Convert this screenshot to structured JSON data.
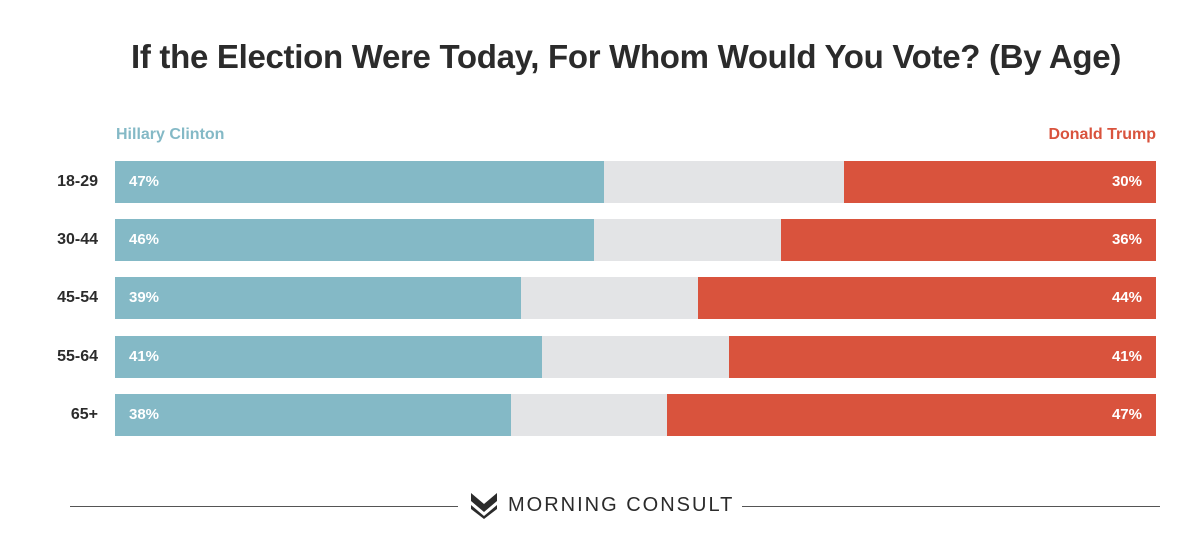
{
  "chart_data": {
    "type": "bar",
    "title": "If the Election Were Today, For Whom Would You Vote? (By Age)",
    "categories": [
      "18-29",
      "30-44",
      "45-54",
      "55-64",
      "65+"
    ],
    "series": [
      {
        "name": "Hillary Clinton",
        "values": [
          47,
          46,
          39,
          41,
          38
        ],
        "labels": [
          "47%",
          "46%",
          "39%",
          "41%",
          "38%"
        ],
        "color": "#84b9c6"
      },
      {
        "name": "Donald Trump",
        "values": [
          30,
          36,
          44,
          41,
          47
        ],
        "labels": [
          "30%",
          "36%",
          "44%",
          "41%",
          "47%"
        ],
        "color": "#d9533d"
      }
    ],
    "remainder_color": "#e3e4e6",
    "xlim": [
      0,
      100
    ],
    "stacked": true,
    "orientation": "horizontal"
  },
  "footer": {
    "brand": "MORNING CONSULT",
    "logo_icon": "morning-consult-logo-icon",
    "line_color": "#555555"
  }
}
